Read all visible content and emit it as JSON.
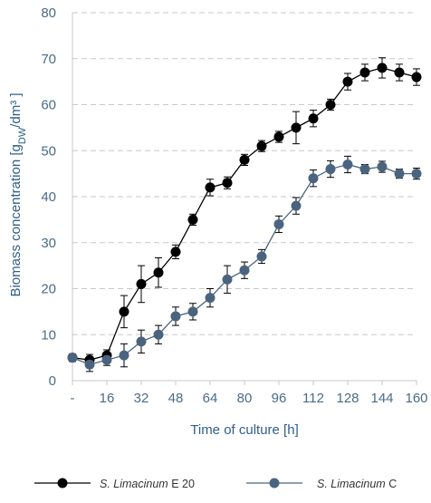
{
  "chart_data": {
    "type": "line",
    "x": [
      0,
      8,
      16,
      24,
      32,
      40,
      48,
      56,
      64,
      72,
      80,
      88,
      96,
      104,
      112,
      120,
      128,
      136,
      144,
      152,
      160
    ],
    "xticks": [
      "-",
      "16",
      "32",
      "48",
      "64",
      "80",
      "96",
      "112",
      "128",
      "144",
      "160"
    ],
    "xtick_values": [
      0,
      16,
      32,
      48,
      64,
      80,
      96,
      112,
      128,
      144,
      160
    ],
    "yticks": [
      "0",
      "10",
      "20",
      "30",
      "40",
      "50",
      "60",
      "70",
      "80"
    ],
    "ytick_values": [
      0,
      10,
      20,
      30,
      40,
      50,
      60,
      70,
      80
    ],
    "xlim": [
      0,
      160
    ],
    "ylim": [
      0,
      80
    ],
    "xlabel": "Time of culture [h]",
    "ylabel_main": "Biomass concentration [g",
    "ylabel_sub": "DW",
    "ylabel_end": "/dm³ ]",
    "grid": "horizontal dashed",
    "legend_position": "bottom",
    "series": [
      {
        "name_italic": "S. Limacinum",
        "name_rest": " E 20",
        "color": "#000000",
        "values": [
          5,
          4.5,
          5.5,
          15,
          21,
          23.5,
          28,
          35,
          42,
          43,
          48,
          51,
          53,
          55,
          57,
          60,
          65,
          67,
          68,
          67,
          66
        ],
        "errors": [
          0.8,
          1.2,
          1.2,
          3.5,
          4.0,
          3.2,
          1.5,
          1.2,
          1.8,
          1.3,
          1.2,
          1.2,
          1.2,
          3.5,
          1.8,
          1.2,
          1.8,
          1.8,
          2.2,
          1.8,
          1.8
        ]
      },
      {
        "name_italic": "S. Limacinum",
        "name_rest": " C",
        "color": "#4a6480",
        "values": [
          5,
          3.5,
          4.5,
          5.5,
          8.5,
          10,
          14,
          15,
          18,
          22,
          24,
          27,
          34,
          38,
          44,
          46,
          47,
          46,
          46.5,
          45,
          45
        ],
        "errors": [
          0.8,
          1.5,
          1.2,
          2.5,
          2.5,
          2.0,
          2.0,
          1.8,
          2.0,
          3.0,
          1.8,
          1.5,
          1.8,
          1.8,
          1.8,
          1.8,
          1.8,
          1.0,
          1.2,
          1.0,
          1.2
        ]
      }
    ]
  }
}
